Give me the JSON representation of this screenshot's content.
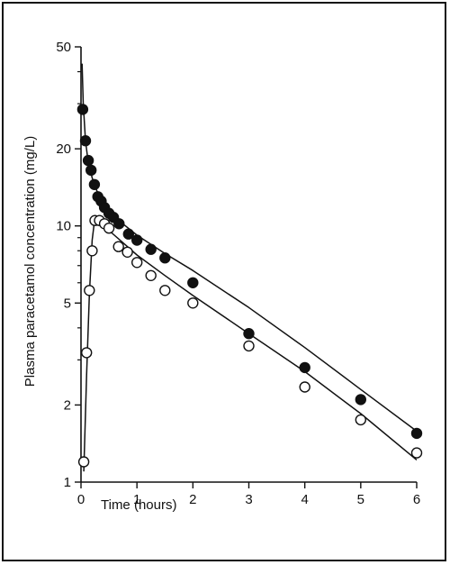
{
  "chart_data": {
    "type": "scatter",
    "xlabel": "Time (hours)",
    "ylabel": "Plasma paracetamol concentration (mg/L)",
    "xlim": [
      0,
      6
    ],
    "ylim": [
      1,
      50
    ],
    "yscale": "log",
    "x_ticks": [
      0,
      1,
      2,
      3,
      4,
      5,
      6
    ],
    "x_tick_labels": [
      "0",
      "1",
      "2",
      "3",
      "4",
      "5",
      "6"
    ],
    "y_ticks": [
      1,
      2,
      5,
      10,
      20,
      50
    ],
    "y_tick_labels": [
      "1",
      "2",
      "5",
      "10",
      "20",
      "50"
    ],
    "y_minor_ticks": [
      3,
      4,
      6,
      7,
      8,
      9,
      30,
      40
    ],
    "grid": false,
    "series": [
      {
        "marker": "filled-circle",
        "color": "#111111",
        "points": [
          [
            0.03,
            28.5
          ],
          [
            0.08,
            21.5
          ],
          [
            0.13,
            18.0
          ],
          [
            0.18,
            16.5
          ],
          [
            0.24,
            14.5
          ],
          [
            0.3,
            13.0
          ],
          [
            0.36,
            12.5
          ],
          [
            0.42,
            11.8
          ],
          [
            0.5,
            11.2
          ],
          [
            0.58,
            10.8
          ],
          [
            0.68,
            10.2
          ],
          [
            0.85,
            9.3
          ],
          [
            1.0,
            8.8
          ],
          [
            1.25,
            8.1
          ],
          [
            1.5,
            7.5
          ],
          [
            2.0,
            6.0
          ],
          [
            3.0,
            3.8
          ],
          [
            4.0,
            2.8
          ],
          [
            5.0,
            2.1
          ],
          [
            6.0,
            1.55
          ]
        ],
        "fit": [
          [
            0.02,
            43
          ],
          [
            0.04,
            30
          ],
          [
            0.08,
            21.5
          ],
          [
            0.12,
            18.3
          ],
          [
            0.2,
            15.4
          ],
          [
            0.3,
            13.4
          ],
          [
            0.4,
            12.2
          ],
          [
            0.5,
            11.4
          ],
          [
            0.7,
            10.4
          ],
          [
            1.0,
            9.2
          ],
          [
            1.5,
            7.8
          ],
          [
            2.0,
            6.7
          ],
          [
            3.0,
            4.8
          ],
          [
            4.0,
            3.35
          ],
          [
            5.0,
            2.3
          ],
          [
            6.0,
            1.58
          ]
        ]
      },
      {
        "marker": "open-circle",
        "color": "#111111",
        "points": [
          [
            0.05,
            1.2
          ],
          [
            0.1,
            3.2
          ],
          [
            0.15,
            5.6
          ],
          [
            0.2,
            8.0
          ],
          [
            0.25,
            10.5
          ],
          [
            0.33,
            10.5
          ],
          [
            0.42,
            10.2
          ],
          [
            0.5,
            9.8
          ],
          [
            0.67,
            8.3
          ],
          [
            0.83,
            7.9
          ],
          [
            1.0,
            7.2
          ],
          [
            1.25,
            6.4
          ],
          [
            1.5,
            5.6
          ],
          [
            2.0,
            5.0
          ],
          [
            3.0,
            3.4
          ],
          [
            4.0,
            2.35
          ],
          [
            5.0,
            1.75
          ],
          [
            6.0,
            1.3
          ]
        ],
        "fit": [
          [
            0.05,
            1.1
          ],
          [
            0.1,
            2.6
          ],
          [
            0.15,
            5.4
          ],
          [
            0.2,
            8.8
          ],
          [
            0.25,
            10.8
          ],
          [
            0.33,
            10.6
          ],
          [
            0.5,
            9.6
          ],
          [
            0.75,
            8.6
          ],
          [
            1.0,
            7.7
          ],
          [
            1.5,
            6.4
          ],
          [
            2.0,
            5.35
          ],
          [
            3.0,
            3.8
          ],
          [
            4.0,
            2.7
          ],
          [
            5.0,
            1.85
          ],
          [
            6.0,
            1.22
          ]
        ]
      }
    ]
  }
}
